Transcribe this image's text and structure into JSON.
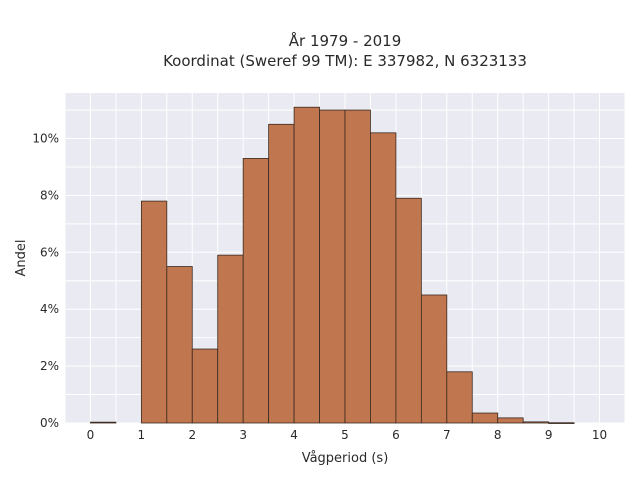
{
  "chart_data": {
    "type": "bar",
    "title": [
      "År 1979 - 2019",
      "Koordinat (Sweref 99 TM): E 337982, N 6323133"
    ],
    "xlabel": "Vågperiod (s)",
    "ylabel": "Andel",
    "bin_width": 0.5,
    "bin_starts": [
      0,
      0.5,
      1,
      1.5,
      2,
      2.5,
      3,
      3.5,
      4,
      4.5,
      5,
      5.5,
      6,
      6.5,
      7,
      7.5,
      8,
      8.5,
      9,
      9.5
    ],
    "values": [
      0.0003,
      0,
      0.078,
      0.055,
      0.026,
      0.059,
      0.093,
      0.105,
      0.111,
      0.11,
      0.11,
      0.102,
      0.079,
      0.045,
      0.018,
      0.0035,
      0.0018,
      0.0004,
      0.0001,
      0
    ],
    "xlim": [
      -0.5,
      10.5
    ],
    "ylim": [
      0,
      0.116
    ],
    "xticks": [
      0,
      1,
      2,
      3,
      4,
      5,
      6,
      7,
      8,
      9,
      10
    ],
    "xtick_labels": [
      "0",
      "1",
      "2",
      "3",
      "4",
      "5",
      "6",
      "7",
      "8",
      "9",
      "10"
    ],
    "yticks": [
      0,
      0.02,
      0.04,
      0.06,
      0.08,
      0.1
    ],
    "ytick_labels": [
      "0%",
      "2%",
      "4%",
      "6%",
      "8%",
      "10%"
    ],
    "grid": true,
    "colors": {
      "bar_fill": "#c0764e",
      "bar_edge": "#3a2a20",
      "background": "#eaeaf2",
      "grid": "#ffffff"
    }
  }
}
